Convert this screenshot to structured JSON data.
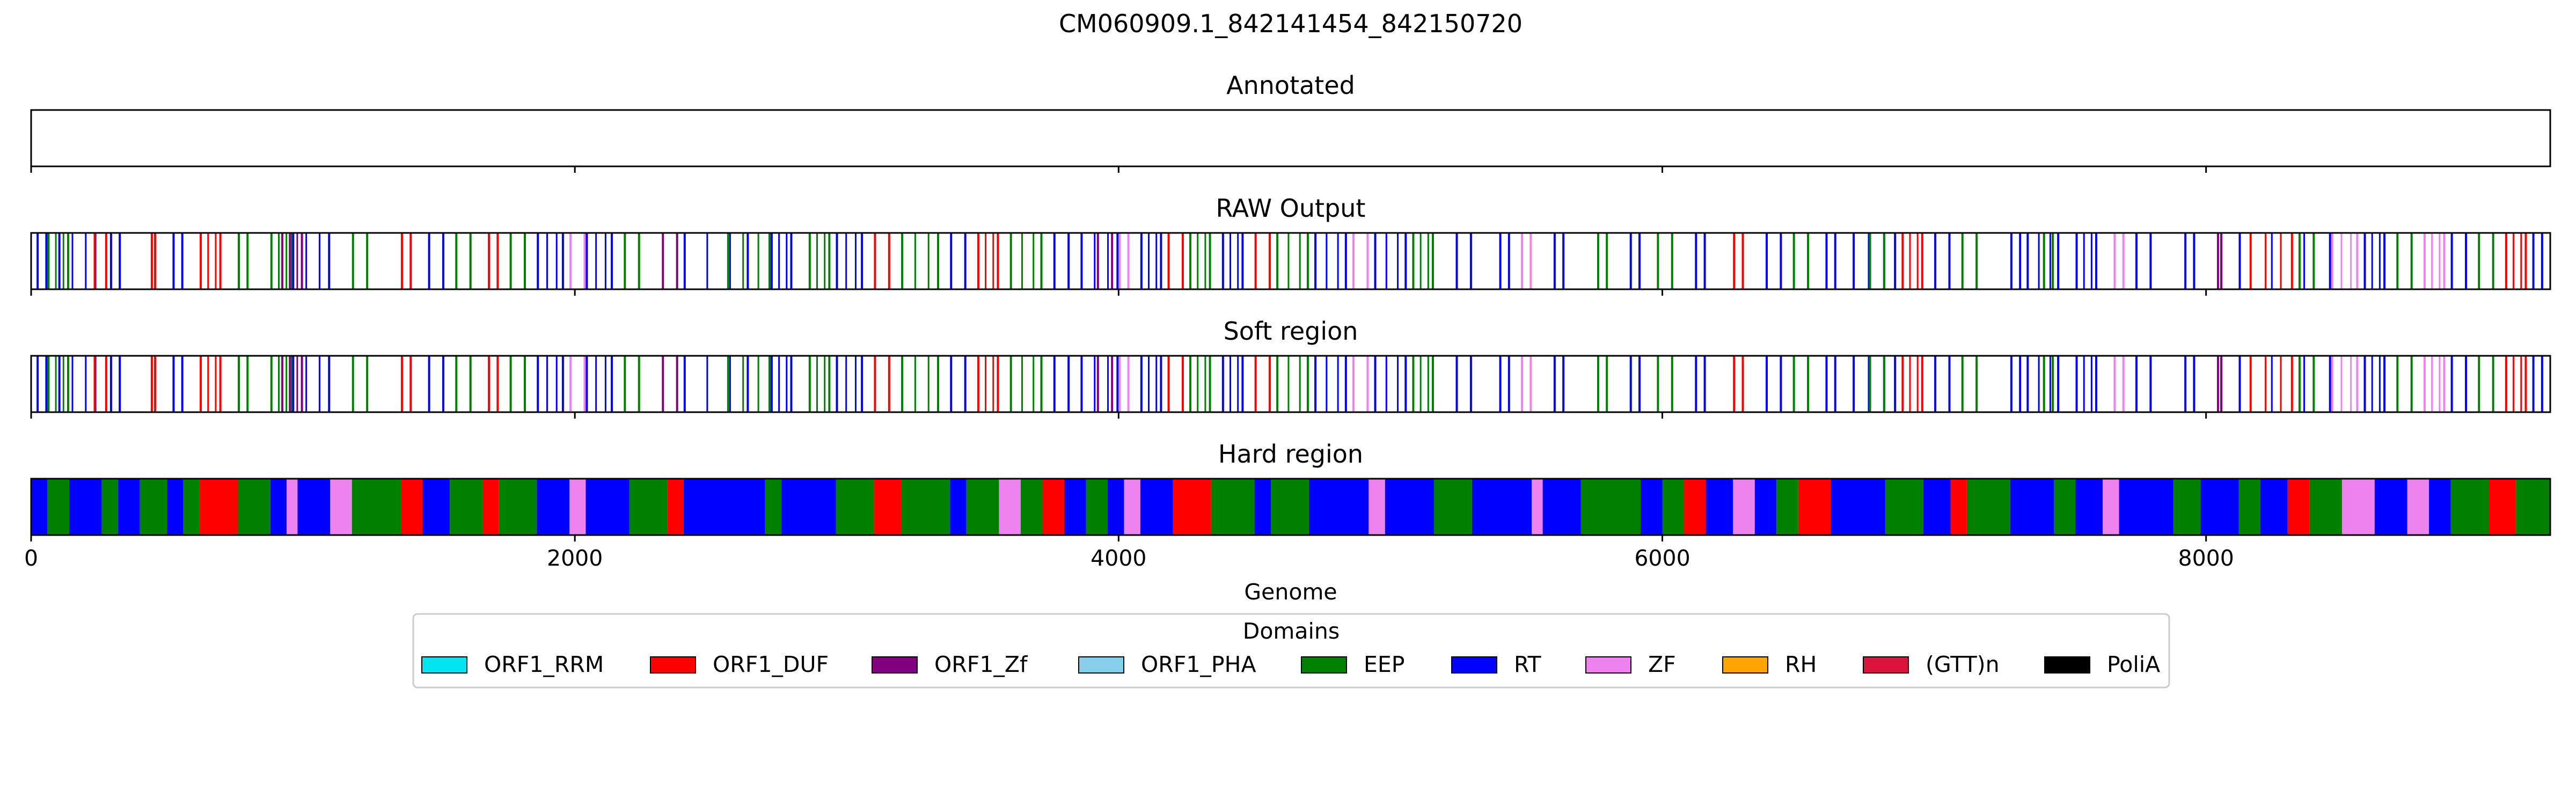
{
  "chart_data": {
    "type": "segments",
    "title": "CM060909.1_842141454_842150720",
    "xlabel": "Genome",
    "xlim": [
      0,
      9266
    ],
    "xticks": [
      0,
      2000,
      4000,
      6000,
      8000
    ],
    "legend": {
      "title": "Domains",
      "placement": "bottom-center",
      "entries": [
        {
          "name": "ORF1_RRM",
          "color": "#00e5ee"
        },
        {
          "name": "ORF1_DUF",
          "color": "#ff0000"
        },
        {
          "name": "ORF1_Zf",
          "color": "#800080"
        },
        {
          "name": "ORF1_PHA",
          "color": "#87ceeb"
        },
        {
          "name": "EEP",
          "color": "#008000"
        },
        {
          "name": "RT",
          "color": "#0000ff"
        },
        {
          "name": "ZF",
          "color": "#ee82ee"
        },
        {
          "name": "RH",
          "color": "#ffa500"
        },
        {
          "name": "(GTT)n",
          "color": "#dc143c"
        },
        {
          "name": "PoliA",
          "color": "#000000"
        }
      ]
    },
    "tracks": [
      {
        "title": "Annotated",
        "mode": "empty",
        "segments": []
      },
      {
        "title": "RAW Output",
        "mode": "lines",
        "segments": [
          {
            "start": 20,
            "end": 60,
            "domain": "RT"
          },
          {
            "start": 60,
            "end": 140,
            "domain": "EEP"
          },
          {
            "start": 100,
            "end": 240,
            "domain": "RT"
          },
          {
            "start": 230,
            "end": 280,
            "domain": "ORF1_DUF"
          },
          {
            "start": 290,
            "end": 330,
            "domain": "RT"
          },
          {
            "start": 440,
            "end": 460,
            "domain": "ORF1_DUF"
          },
          {
            "start": 520,
            "end": 560,
            "domain": "RT"
          },
          {
            "start": 620,
            "end": 700,
            "domain": "ORF1_DUF"
          },
          {
            "start": 760,
            "end": 800,
            "domain": "EEP"
          },
          {
            "start": 880,
            "end": 960,
            "domain": "EEP"
          },
          {
            "start": 920,
            "end": 1000,
            "domain": "ORF1_Zf"
          },
          {
            "start": 960,
            "end": 1100,
            "domain": "RT"
          },
          {
            "start": 1180,
            "end": 1240,
            "domain": "EEP"
          },
          {
            "start": 1360,
            "end": 1400,
            "domain": "ORF1_DUF"
          },
          {
            "start": 1460,
            "end": 1520,
            "domain": "RT"
          },
          {
            "start": 1560,
            "end": 1620,
            "domain": "EEP"
          },
          {
            "start": 1680,
            "end": 1720,
            "domain": "ORF1_DUF"
          },
          {
            "start": 1760,
            "end": 1820,
            "domain": "EEP"
          },
          {
            "start": 1860,
            "end": 1960,
            "domain": "RT"
          },
          {
            "start": 1980,
            "end": 2040,
            "domain": "ZF"
          },
          {
            "start": 2040,
            "end": 2140,
            "domain": "RT"
          },
          {
            "start": 2180,
            "end": 2240,
            "domain": "EEP"
          },
          {
            "start": 2320,
            "end": 2380,
            "domain": "ORF1_Zf"
          },
          {
            "start": 2400,
            "end": 2640,
            "domain": "RT"
          },
          {
            "start": 2560,
            "end": 2720,
            "domain": "EEP"
          },
          {
            "start": 2720,
            "end": 2800,
            "domain": "RT"
          },
          {
            "start": 2860,
            "end": 2940,
            "domain": "EEP"
          },
          {
            "start": 2960,
            "end": 3060,
            "domain": "RT"
          },
          {
            "start": 3100,
            "end": 3160,
            "domain": "ORF1_DUF"
          },
          {
            "start": 3200,
            "end": 3340,
            "domain": "EEP"
          },
          {
            "start": 3380,
            "end": 3440,
            "domain": "RT"
          },
          {
            "start": 3480,
            "end": 3560,
            "domain": "ORF1_DUF"
          },
          {
            "start": 3600,
            "end": 3720,
            "domain": "EEP"
          },
          {
            "start": 3760,
            "end": 3820,
            "domain": "RT"
          },
          {
            "start": 3860,
            "end": 4000,
            "domain": "RT"
          },
          {
            "start": 3920,
            "end": 3980,
            "domain": "ORF1_Zf"
          },
          {
            "start": 4000,
            "end": 4040,
            "domain": "ZF"
          },
          {
            "start": 4080,
            "end": 4160,
            "domain": "RT"
          },
          {
            "start": 4180,
            "end": 4240,
            "domain": "ORF1_DUF"
          },
          {
            "start": 4260,
            "end": 4340,
            "domain": "EEP"
          },
          {
            "start": 4380,
            "end": 4460,
            "domain": "RT"
          },
          {
            "start": 4500,
            "end": 4560,
            "domain": "ORF1_DUF"
          },
          {
            "start": 4580,
            "end": 4700,
            "domain": "EEP"
          },
          {
            "start": 4720,
            "end": 4840,
            "domain": "RT"
          },
          {
            "start": 4860,
            "end": 4920,
            "domain": "ZF"
          },
          {
            "start": 4940,
            "end": 5060,
            "domain": "RT"
          },
          {
            "start": 5080,
            "end": 5160,
            "domain": "EEP"
          },
          {
            "start": 5240,
            "end": 5300,
            "domain": "RT"
          },
          {
            "start": 5400,
            "end": 5440,
            "domain": "RT"
          },
          {
            "start": 5480,
            "end": 5520,
            "domain": "ZF"
          },
          {
            "start": 5600,
            "end": 5640,
            "domain": "RT"
          },
          {
            "start": 5760,
            "end": 5800,
            "domain": "EEP"
          },
          {
            "start": 5880,
            "end": 5920,
            "domain": "RT"
          },
          {
            "start": 5980,
            "end": 6040,
            "domain": "EEP"
          },
          {
            "start": 6120,
            "end": 6160,
            "domain": "RT"
          },
          {
            "start": 6260,
            "end": 6300,
            "domain": "ORF1_DUF"
          },
          {
            "start": 6380,
            "end": 6440,
            "domain": "RT"
          },
          {
            "start": 6480,
            "end": 6540,
            "domain": "EEP"
          },
          {
            "start": 6600,
            "end": 6640,
            "domain": "RT"
          },
          {
            "start": 6700,
            "end": 6860,
            "domain": "RT"
          },
          {
            "start": 6760,
            "end": 6820,
            "domain": "EEP"
          },
          {
            "start": 6880,
            "end": 6960,
            "domain": "ORF1_DUF"
          },
          {
            "start": 7000,
            "end": 7060,
            "domain": "RT"
          },
          {
            "start": 7100,
            "end": 7160,
            "domain": "EEP"
          },
          {
            "start": 7280,
            "end": 7320,
            "domain": "RT"
          },
          {
            "start": 7340,
            "end": 7460,
            "domain": "RT"
          },
          {
            "start": 7400,
            "end": 7440,
            "domain": "EEP"
          },
          {
            "start": 7520,
            "end": 7600,
            "domain": "RT"
          },
          {
            "start": 7660,
            "end": 7700,
            "domain": "ZF"
          },
          {
            "start": 7740,
            "end": 7800,
            "domain": "RT"
          },
          {
            "start": 7920,
            "end": 7960,
            "domain": "RT"
          },
          {
            "start": 8040,
            "end": 8060,
            "domain": "ORF1_Zf"
          },
          {
            "start": 8120,
            "end": 8460,
            "domain": "RT"
          },
          {
            "start": 8160,
            "end": 8320,
            "domain": "ORF1_DUF"
          },
          {
            "start": 8340,
            "end": 8400,
            "domain": "EEP"
          },
          {
            "start": 8460,
            "end": 8560,
            "domain": "ZF"
          },
          {
            "start": 8580,
            "end": 8660,
            "domain": "RT"
          },
          {
            "start": 8700,
            "end": 8760,
            "domain": "EEP"
          },
          {
            "start": 8800,
            "end": 8880,
            "domain": "ZF"
          },
          {
            "start": 8900,
            "end": 8960,
            "domain": "RT"
          },
          {
            "start": 9000,
            "end": 9060,
            "domain": "EEP"
          },
          {
            "start": 9100,
            "end": 9180,
            "domain": "ORF1_DUF"
          },
          {
            "start": 9200,
            "end": 9240,
            "domain": "RT"
          }
        ]
      },
      {
        "title": "Soft region",
        "mode": "lines",
        "same_as": "RAW Output",
        "segments": []
      },
      {
        "title": "Hard region",
        "mode": "fill",
        "segments": [
          {
            "start": 0,
            "end": 60,
            "domain": "RT"
          },
          {
            "start": 60,
            "end": 140,
            "domain": "EEP"
          },
          {
            "start": 140,
            "end": 260,
            "domain": "RT"
          },
          {
            "start": 260,
            "end": 320,
            "domain": "EEP"
          },
          {
            "start": 320,
            "end": 400,
            "domain": "RT"
          },
          {
            "start": 400,
            "end": 500,
            "domain": "EEP"
          },
          {
            "start": 500,
            "end": 560,
            "domain": "RT"
          },
          {
            "start": 560,
            "end": 620,
            "domain": "EEP"
          },
          {
            "start": 620,
            "end": 760,
            "domain": "ORF1_DUF"
          },
          {
            "start": 760,
            "end": 880,
            "domain": "EEP"
          },
          {
            "start": 880,
            "end": 940,
            "domain": "RT"
          },
          {
            "start": 940,
            "end": 980,
            "domain": "ZF"
          },
          {
            "start": 980,
            "end": 1100,
            "domain": "RT"
          },
          {
            "start": 1100,
            "end": 1180,
            "domain": "ZF"
          },
          {
            "start": 1180,
            "end": 1360,
            "domain": "EEP"
          },
          {
            "start": 1360,
            "end": 1440,
            "domain": "ORF1_DUF"
          },
          {
            "start": 1440,
            "end": 1540,
            "domain": "RT"
          },
          {
            "start": 1540,
            "end": 1660,
            "domain": "EEP"
          },
          {
            "start": 1660,
            "end": 1720,
            "domain": "ORF1_DUF"
          },
          {
            "start": 1720,
            "end": 1860,
            "domain": "EEP"
          },
          {
            "start": 1860,
            "end": 1980,
            "domain": "RT"
          },
          {
            "start": 1980,
            "end": 2040,
            "domain": "ZF"
          },
          {
            "start": 2040,
            "end": 2200,
            "domain": "RT"
          },
          {
            "start": 2200,
            "end": 2340,
            "domain": "EEP"
          },
          {
            "start": 2340,
            "end": 2400,
            "domain": "ORF1_DUF"
          },
          {
            "start": 2400,
            "end": 2700,
            "domain": "RT"
          },
          {
            "start": 2700,
            "end": 2760,
            "domain": "EEP"
          },
          {
            "start": 2760,
            "end": 2960,
            "domain": "RT"
          },
          {
            "start": 2960,
            "end": 3100,
            "domain": "EEP"
          },
          {
            "start": 3100,
            "end": 3200,
            "domain": "ORF1_DUF"
          },
          {
            "start": 3200,
            "end": 3380,
            "domain": "EEP"
          },
          {
            "start": 3380,
            "end": 3440,
            "domain": "RT"
          },
          {
            "start": 3440,
            "end": 3560,
            "domain": "EEP"
          },
          {
            "start": 3560,
            "end": 3640,
            "domain": "ZF"
          },
          {
            "start": 3640,
            "end": 3720,
            "domain": "EEP"
          },
          {
            "start": 3720,
            "end": 3800,
            "domain": "ORF1_DUF"
          },
          {
            "start": 3800,
            "end": 3880,
            "domain": "RT"
          },
          {
            "start": 3880,
            "end": 3960,
            "domain": "EEP"
          },
          {
            "start": 3960,
            "end": 4020,
            "domain": "RT"
          },
          {
            "start": 4020,
            "end": 4080,
            "domain": "ZF"
          },
          {
            "start": 4080,
            "end": 4200,
            "domain": "RT"
          },
          {
            "start": 4200,
            "end": 4340,
            "domain": "ORF1_DUF"
          },
          {
            "start": 4340,
            "end": 4500,
            "domain": "EEP"
          },
          {
            "start": 4500,
            "end": 4560,
            "domain": "RT"
          },
          {
            "start": 4560,
            "end": 4700,
            "domain": "EEP"
          },
          {
            "start": 4700,
            "end": 4920,
            "domain": "RT"
          },
          {
            "start": 4920,
            "end": 4980,
            "domain": "ZF"
          },
          {
            "start": 4980,
            "end": 5160,
            "domain": "RT"
          },
          {
            "start": 5160,
            "end": 5300,
            "domain": "EEP"
          },
          {
            "start": 5300,
            "end": 5520,
            "domain": "RT"
          },
          {
            "start": 5520,
            "end": 5560,
            "domain": "ZF"
          },
          {
            "start": 5560,
            "end": 5700,
            "domain": "RT"
          },
          {
            "start": 5700,
            "end": 5920,
            "domain": "EEP"
          },
          {
            "start": 5920,
            "end": 6000,
            "domain": "RT"
          },
          {
            "start": 6000,
            "end": 6080,
            "domain": "EEP"
          },
          {
            "start": 6080,
            "end": 6160,
            "domain": "ORF1_DUF"
          },
          {
            "start": 6160,
            "end": 6260,
            "domain": "RT"
          },
          {
            "start": 6260,
            "end": 6340,
            "domain": "ZF"
          },
          {
            "start": 6340,
            "end": 6420,
            "domain": "RT"
          },
          {
            "start": 6420,
            "end": 6500,
            "domain": "EEP"
          },
          {
            "start": 6500,
            "end": 6620,
            "domain": "ORF1_DUF"
          },
          {
            "start": 6620,
            "end": 6820,
            "domain": "RT"
          },
          {
            "start": 6820,
            "end": 6960,
            "domain": "EEP"
          },
          {
            "start": 6960,
            "end": 7060,
            "domain": "RT"
          },
          {
            "start": 7060,
            "end": 7120,
            "domain": "ORF1_DUF"
          },
          {
            "start": 7120,
            "end": 7280,
            "domain": "EEP"
          },
          {
            "start": 7280,
            "end": 7440,
            "domain": "RT"
          },
          {
            "start": 7440,
            "end": 7520,
            "domain": "EEP"
          },
          {
            "start": 7520,
            "end": 7620,
            "domain": "RT"
          },
          {
            "start": 7620,
            "end": 7680,
            "domain": "ZF"
          },
          {
            "start": 7680,
            "end": 7880,
            "domain": "RT"
          },
          {
            "start": 7880,
            "end": 7980,
            "domain": "EEP"
          },
          {
            "start": 7980,
            "end": 8120,
            "domain": "RT"
          },
          {
            "start": 8120,
            "end": 8200,
            "domain": "EEP"
          },
          {
            "start": 8200,
            "end": 8300,
            "domain": "RT"
          },
          {
            "start": 8300,
            "end": 8380,
            "domain": "ORF1_DUF"
          },
          {
            "start": 8380,
            "end": 8500,
            "domain": "EEP"
          },
          {
            "start": 8500,
            "end": 8620,
            "domain": "ZF"
          },
          {
            "start": 8620,
            "end": 8740,
            "domain": "RT"
          },
          {
            "start": 8740,
            "end": 8820,
            "domain": "ZF"
          },
          {
            "start": 8820,
            "end": 8900,
            "domain": "RT"
          },
          {
            "start": 8900,
            "end": 9040,
            "domain": "EEP"
          },
          {
            "start": 9040,
            "end": 9140,
            "domain": "ORF1_DUF"
          },
          {
            "start": 9140,
            "end": 9266,
            "domain": "EEP"
          }
        ]
      }
    ]
  }
}
